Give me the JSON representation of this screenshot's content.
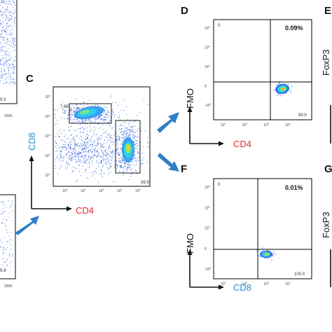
{
  "colors": {
    "cd4": "#e8262c",
    "cd8": "#1f8ecf",
    "dots": "#1a4fd8",
    "arrow": "#2f7fc6",
    "axis_black": "#111111"
  },
  "panels": {
    "C": {
      "letter": "C",
      "xlabel": "CD4",
      "ylabel": "CD8",
      "x_ticks": [
        "10",
        "10",
        "10",
        "10",
        "10"
      ],
      "x_tick_exp": [
        "1",
        "2",
        "3",
        "4",
        "5"
      ],
      "y_ticks": [
        "10",
        "10",
        "10",
        "10",
        "10"
      ],
      "y_tick_exp": [
        "1",
        "2",
        "3",
        "4",
        "5"
      ],
      "gate_cd8": "7.69",
      "gate_cd4": "39.9"
    },
    "D": {
      "letter": "D",
      "xlabel": "CD4",
      "ylabel": "FMO",
      "quad_ul": "0",
      "quad_ur": "0.09%",
      "quad_lr": "99.9",
      "x_ticks": [
        "10",
        "10",
        "10",
        "10"
      ],
      "x_tick_exp": [
        "1",
        "2",
        "3",
        "4"
      ],
      "y_ticks": [
        "10",
        "10",
        "10",
        "0",
        "-10"
      ],
      "y_tick_exp": [
        "5",
        "4",
        "3",
        "",
        "3"
      ]
    },
    "F": {
      "letter": "F",
      "xlabel": "CD8",
      "ylabel": "FMO",
      "quad_ul": "0",
      "quad_ur": "0.01%",
      "quad_lr": "100.0",
      "x_ticks": [
        "10",
        "10",
        "10",
        "10"
      ],
      "x_tick_exp": [
        "1",
        "2",
        "3",
        "4"
      ],
      "y_ticks": [
        "10",
        "10",
        "10",
        "0",
        "-10"
      ],
      "y_tick_exp": [
        "5",
        "4",
        "3",
        "",
        "3"
      ]
    },
    "E": {
      "letter": "E",
      "ylabel": "FoxP3"
    },
    "G": {
      "letter": "G",
      "ylabel": "FoxP3"
    },
    "left_top": {
      "value": "9.3",
      "tick": "250K"
    },
    "left_bottom": {
      "value": "9.8",
      "tick": "250K"
    }
  },
  "chart_data": [
    {
      "type": "scatter",
      "panel": "C",
      "xlabel": "CD4",
      "ylabel": "CD8",
      "x_scale": "log",
      "y_scale": "log",
      "xlim": [
        10,
        100000
      ],
      "ylim": [
        10,
        100000
      ],
      "gates": [
        {
          "label": "7.69",
          "x_range": [
            100,
            2000
          ],
          "y_range": [
            500,
            3000
          ]
        },
        {
          "label": "39.9",
          "x_range": [
            6000,
            25000
          ],
          "y_range": [
            50,
            800
          ]
        }
      ],
      "populations": [
        {
          "center": [
            600,
            1200
          ],
          "density": "high"
        },
        {
          "center": [
            12000,
            150
          ],
          "density": "high"
        },
        {
          "center": [
            300,
            150
          ],
          "density": "medium"
        }
      ]
    },
    {
      "type": "scatter",
      "panel": "D",
      "xlabel": "CD4",
      "ylabel": "FMO",
      "quadrants": {
        "upper_left": "0",
        "upper_right": "0.09%",
        "lower_right": "99.9"
      },
      "populations": [
        {
          "center": [
            10000,
            0
          ],
          "density": "high"
        }
      ]
    },
    {
      "type": "scatter",
      "panel": "F",
      "xlabel": "CD8",
      "ylabel": "FMO",
      "quadrants": {
        "upper_left": "0",
        "upper_right": "0.01%",
        "lower_right": "100.0"
      },
      "populations": [
        {
          "center": [
            2000,
            0
          ],
          "density": "high"
        }
      ]
    }
  ]
}
